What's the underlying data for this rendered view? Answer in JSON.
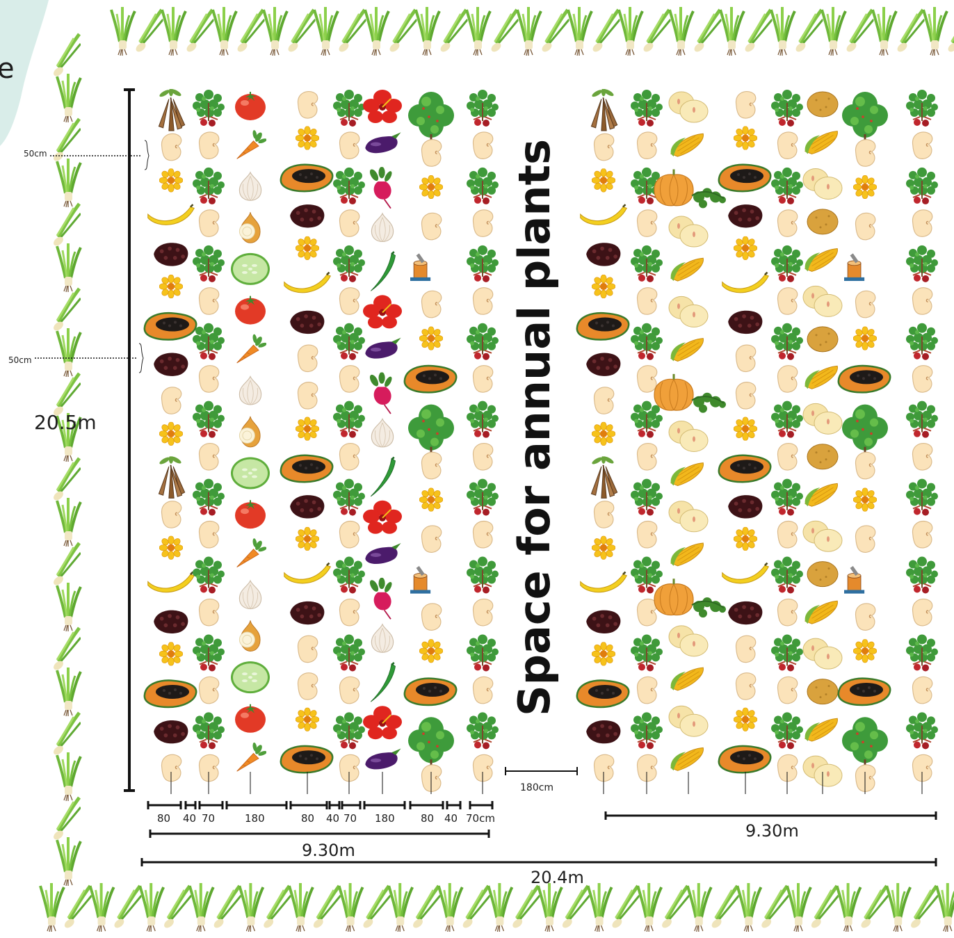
{
  "diagram": {
    "center_label": "Space for annual plants",
    "height_label": "20.5m",
    "spacing_label_top": "50cm",
    "spacing_label_mid": "50cm",
    "path_label": "180cm",
    "total_width_label": "20.4m",
    "left_block_width_label": "9.30m",
    "right_block_width_label": "9.30m",
    "row_widths": [
      "80",
      "40",
      "70",
      "180",
      "80",
      "40",
      "70",
      "180",
      "80",
      "40",
      "70cm"
    ],
    "corner_partial_letter": "e"
  },
  "colors": {
    "border_grass": "#7cc242",
    "measure_line": "#111111",
    "background": "#ffffff",
    "corner_wash": "#cfe8e4"
  },
  "plant_icons": [
    "lemongrass-icon",
    "cassava-icon",
    "moringa-icon",
    "tomato-icon",
    "carrot-icon",
    "garlic-icon",
    "onion-icon",
    "cucumber-icon",
    "papaya-icon",
    "banana-icon",
    "bean-icon",
    "marigold-icon",
    "hibiscus-icon",
    "eggplant-icon",
    "beetroot-icon",
    "okra-icon",
    "potato-icon",
    "corn-icon",
    "pumpkin-icon",
    "shrub-icon"
  ]
}
